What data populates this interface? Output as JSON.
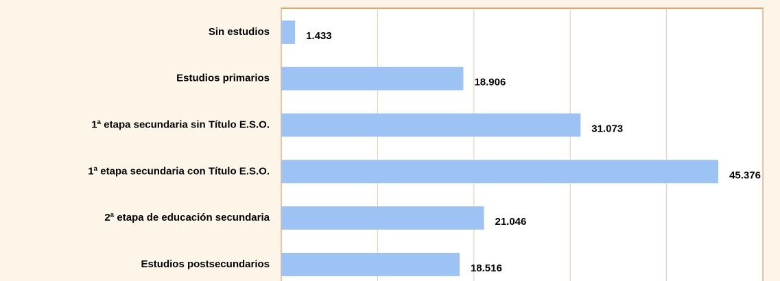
{
  "chart_data": {
    "type": "barh",
    "categories": [
      "Sin estudios",
      "Estudios primarios",
      "1ª etapa secundaria sin Título E.S.O.",
      "1ª etapa secundaria con Título E.S.O.",
      "2ª etapa de educación secundaria",
      "Estudios postsecundarios"
    ],
    "values": [
      1433,
      18906,
      31073,
      45376,
      21046,
      18516
    ],
    "value_labels": [
      "1.433",
      "18.906",
      "31.073",
      "45.376",
      "21.046",
      "18.516"
    ],
    "color": "#9dc3f4",
    "xlim": [
      0,
      50000
    ],
    "xticks": [
      0,
      10000,
      20000,
      30000,
      40000,
      50000
    ],
    "grid": true
  }
}
